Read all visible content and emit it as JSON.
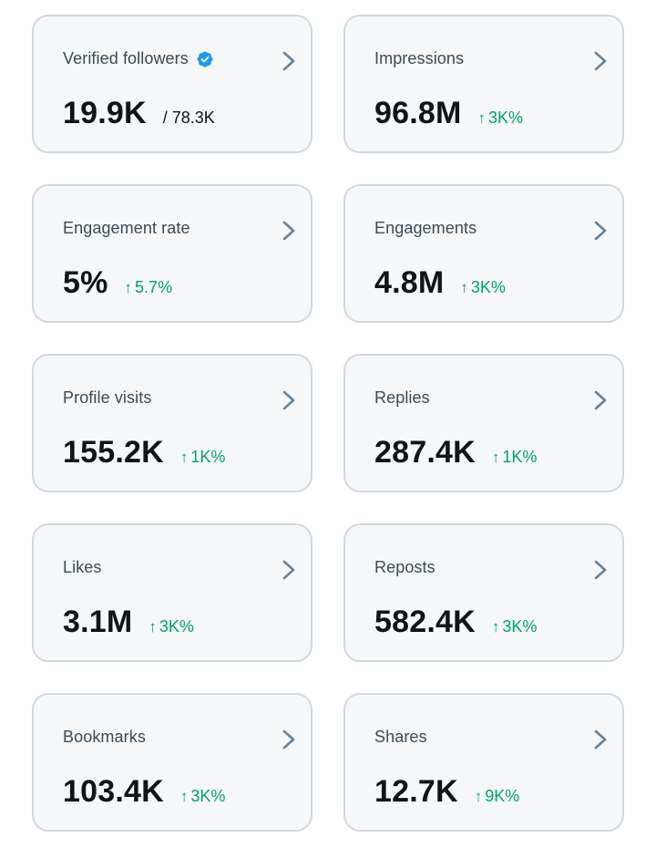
{
  "colors": {
    "card_bg": "#f5f7f8",
    "card_border": "#cfd9de",
    "label": "#3d4a54",
    "value": "#0f1419",
    "positive_change": "#00a36c",
    "verified_badge": "#1d9bf0",
    "chevron": "#6b8296"
  },
  "cards": [
    {
      "label": "Verified followers",
      "value": "19.9K",
      "sub": "/ 78.3K",
      "verified": true,
      "change": ""
    },
    {
      "label": "Impressions",
      "value": "96.8M",
      "change": "3K%"
    },
    {
      "label": "Engagement rate",
      "value": "5%",
      "change": "5.7%"
    },
    {
      "label": "Engagements",
      "value": "4.8M",
      "change": "3K%"
    },
    {
      "label": "Profile visits",
      "value": "155.2K",
      "change": "1K%"
    },
    {
      "label": "Replies",
      "value": "287.4K",
      "change": "1K%"
    },
    {
      "label": "Likes",
      "value": "3.1M",
      "change": "3K%"
    },
    {
      "label": "Reposts",
      "value": "582.4K",
      "change": "3K%"
    },
    {
      "label": "Bookmarks",
      "value": "103.4K",
      "change": "3K%"
    },
    {
      "label": "Shares",
      "value": "12.7K",
      "change": "9K%"
    }
  ],
  "icons": {
    "arrow": "↑",
    "chevron": "chevron-right-icon",
    "verified": "verified-badge-icon"
  }
}
